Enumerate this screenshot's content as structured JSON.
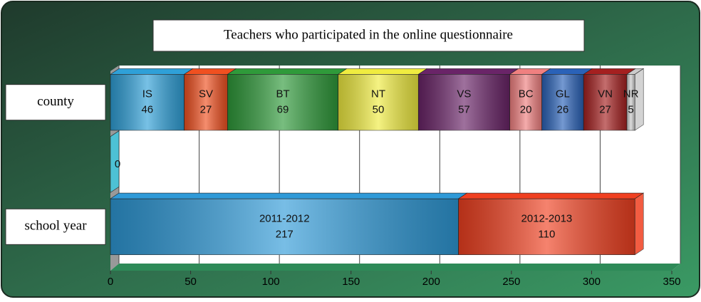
{
  "chart_data": {
    "type": "stacked-bar-horizontal",
    "title": "Teachers who participated in the online questionnaire",
    "categories": [
      "county",
      null,
      "school year"
    ],
    "stacks": [
      [
        {
          "name": "IS",
          "value": 46,
          "color": "#2fa0d8"
        },
        {
          "name": "SV",
          "value": 27,
          "color": "#f05020"
        },
        {
          "name": "BT",
          "value": 69,
          "color": "#2f9a3a"
        },
        {
          "name": "NT",
          "value": 50,
          "color": "#f0ec40"
        },
        {
          "name": "VS",
          "value": 57,
          "color": "#6a2468"
        },
        {
          "name": "BC",
          "value": 20,
          "color": "#f08080"
        },
        {
          "name": "GL",
          "value": 26,
          "color": "#2a62b8"
        },
        {
          "name": "VN",
          "value": 27,
          "color": "#a52020"
        },
        {
          "name": "NR",
          "value": 5,
          "color": "#cccccc"
        }
      ],
      [
        {
          "value": 0,
          "color": "#40c8e0"
        }
      ],
      [
        {
          "name": "2011-2012",
          "value": 217,
          "color": "#2f9ad8"
        },
        {
          "name": "2012-2013",
          "value": 110,
          "color": "#f04020"
        }
      ]
    ],
    "xlim": [
      0,
      350
    ],
    "xticks": [
      0,
      50,
      100,
      150,
      200,
      250,
      300,
      350
    ],
    "grid": true
  }
}
